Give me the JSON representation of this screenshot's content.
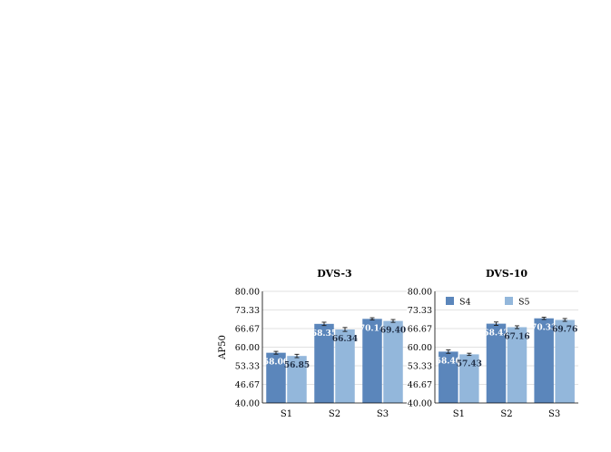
{
  "colors": {
    "S4": "#5b86bb",
    "S5": "#93b7db",
    "grid": "#d9d9d9",
    "axis": "#000000",
    "error": "#1a1a1a"
  },
  "chart_data": [
    {
      "type": "bar",
      "title": "DVS-3",
      "xlabel": "",
      "ylabel": "AP50",
      "categories": [
        "S1",
        "S2",
        "S3"
      ],
      "ylim": [
        40.0,
        80.0
      ],
      "yticks": [
        "80.00",
        "73.33",
        "66.67",
        "60.00",
        "53.33",
        "46.67",
        "40.00"
      ],
      "grid": true,
      "series": [
        {
          "values": [
            58.0,
            68.35,
            70.14
          ],
          "errors": [
            0.5,
            0.6,
            0.4
          ],
          "labels": [
            "58.00",
            "68.35",
            "70.14"
          ]
        },
        {
          "values": [
            56.85,
            66.34,
            69.4
          ],
          "errors": [
            0.6,
            0.7,
            0.5
          ],
          "labels": [
            "56.85",
            "66.34",
            "69.40"
          ]
        }
      ]
    },
    {
      "type": "bar",
      "title": "DVS-10",
      "xlabel": "",
      "ylabel": "",
      "categories": [
        "S1",
        "S2",
        "S3"
      ],
      "ylim": [
        40.0,
        80.0
      ],
      "yticks": [
        "80.00",
        "73.33",
        "66.67",
        "60.00",
        "53.33",
        "46.67",
        "40.00"
      ],
      "grid": true,
      "legend": "top-left",
      "series": [
        {
          "name": "S4",
          "values": [
            58.4,
            68.42,
            70.33
          ],
          "errors": [
            0.6,
            0.6,
            0.4
          ],
          "labels": [
            "58.40",
            "68.42",
            "70.33"
          ]
        },
        {
          "name": "S5",
          "values": [
            57.43,
            67.16,
            69.76
          ],
          "errors": [
            0.4,
            0.5,
            0.5
          ],
          "labels": [
            "57.43",
            "67.16",
            "69.76"
          ]
        }
      ]
    }
  ]
}
